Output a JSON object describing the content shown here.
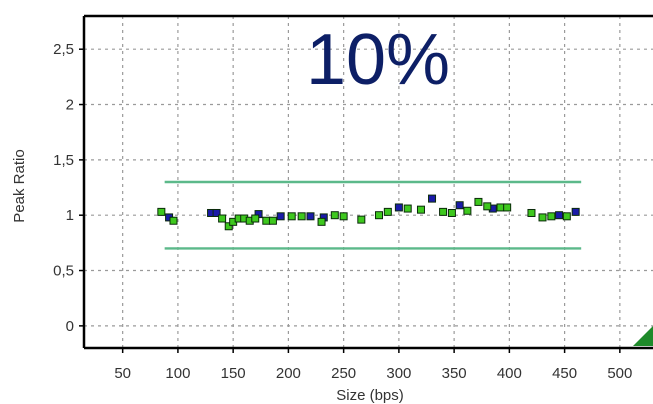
{
  "chart_data": {
    "type": "scatter",
    "title": "10%",
    "xlabel": "Size (bps)",
    "ylabel": "Peak Ratio",
    "xlim": [
      15,
      530
    ],
    "ylim": [
      -0.2,
      2.8
    ],
    "x_ticks": [
      50,
      100,
      150,
      200,
      250,
      300,
      350,
      400,
      450,
      500
    ],
    "x_tick_labels": [
      "50",
      "100",
      "150",
      "200",
      "250",
      "300",
      "350",
      "400",
      "450",
      "500"
    ],
    "y_ticks": [
      0,
      0.5,
      1,
      1.5,
      2,
      2.5
    ],
    "y_tick_labels": [
      "0",
      "0,5",
      "1",
      "1,5",
      "2",
      "2,5"
    ],
    "grid": true,
    "threshold_lines": [
      {
        "y": 1.3,
        "x_range": [
          88,
          465
        ],
        "color": "#5cb98a"
      },
      {
        "y": 0.7,
        "x_range": [
          88,
          465
        ],
        "color": "#5cb98a"
      }
    ],
    "series": [
      {
        "color": "#1a1aa8",
        "points": [
          [
            92,
            0.98
          ],
          [
            130,
            1.02
          ],
          [
            135,
            1.02
          ],
          [
            173,
            1.01
          ],
          [
            193,
            0.99
          ],
          [
            220,
            0.99
          ],
          [
            232,
            0.98
          ],
          [
            300,
            1.07
          ],
          [
            330,
            1.15
          ],
          [
            355,
            1.09
          ],
          [
            385,
            1.06
          ],
          [
            445,
            1.0
          ],
          [
            460,
            1.03
          ]
        ]
      },
      {
        "color": "#3ec81e",
        "points": [
          [
            85,
            1.03
          ],
          [
            96,
            0.95
          ],
          [
            140,
            0.97
          ],
          [
            146,
            0.9
          ],
          [
            150,
            0.94
          ],
          [
            155,
            0.97
          ],
          [
            160,
            0.97
          ],
          [
            165,
            0.95
          ],
          [
            170,
            0.97
          ],
          [
            180,
            0.95
          ],
          [
            186,
            0.95
          ],
          [
            203,
            0.99
          ],
          [
            212,
            0.99
          ],
          [
            230,
            0.94
          ],
          [
            242,
            1.0
          ],
          [
            250,
            0.99
          ],
          [
            266,
            0.96
          ],
          [
            282,
            1.0
          ],
          [
            290,
            1.03
          ],
          [
            308,
            1.06
          ],
          [
            320,
            1.05
          ],
          [
            340,
            1.03
          ],
          [
            348,
            1.02
          ],
          [
            362,
            1.04
          ],
          [
            372,
            1.12
          ],
          [
            380,
            1.08
          ],
          [
            392,
            1.07
          ],
          [
            398,
            1.07
          ],
          [
            420,
            1.02
          ],
          [
            430,
            0.98
          ],
          [
            438,
            0.99
          ],
          [
            452,
            0.99
          ]
        ]
      }
    ],
    "corner_marker_color": "#1e8a2a"
  }
}
